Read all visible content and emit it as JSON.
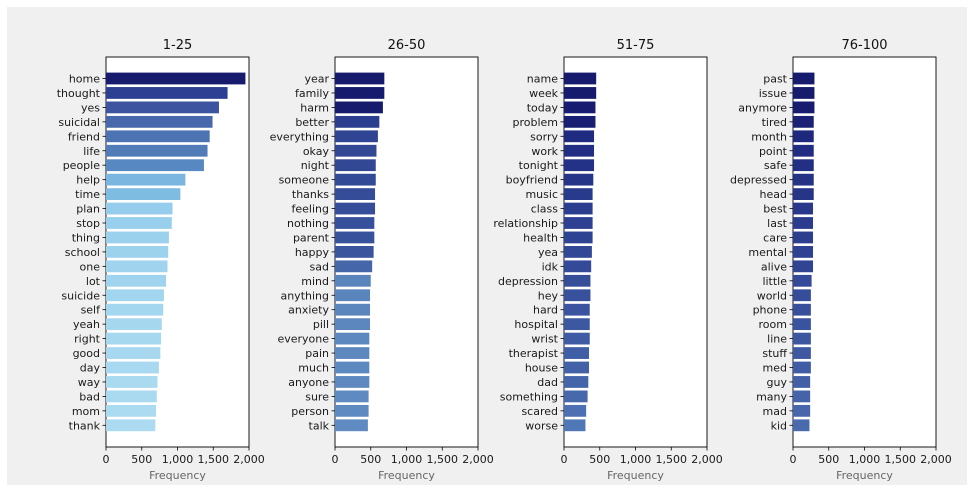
{
  "chart_data": [
    {
      "type": "bar",
      "orientation": "horizontal",
      "title": "1-25",
      "xlabel": "Frequency",
      "xlim": [
        0,
        2000
      ],
      "xticks": [
        "0",
        "500",
        "1,000",
        "1,500",
        "2,000"
      ],
      "categories": [
        "home",
        "thought",
        "yes",
        "suicidal",
        "friend",
        "life",
        "people",
        "help",
        "time",
        "plan",
        "stop",
        "thing",
        "school",
        "one",
        "lot",
        "suicide",
        "self",
        "yeah",
        "right",
        "good",
        "day",
        "way",
        "bad",
        "mom",
        "thank"
      ],
      "values": [
        1950,
        1700,
        1580,
        1490,
        1450,
        1420,
        1370,
        1110,
        1040,
        930,
        920,
        880,
        870,
        860,
        840,
        810,
        800,
        780,
        770,
        760,
        740,
        720,
        710,
        700,
        690
      ],
      "colors": [
        "#161b6e",
        "#2d3f93",
        "#3d55a0",
        "#4768aa",
        "#4d73b2",
        "#527cb8",
        "#5888c2",
        "#7ab6e0",
        "#7fbce2",
        "#96cdec",
        "#98cfec",
        "#9bd1ed",
        "#9dd2ed",
        "#9fd3ee",
        "#a0d4ee",
        "#a2d5ee",
        "#a3d6ef",
        "#a5d7ef",
        "#a6d8ef",
        "#a7d8f0",
        "#a8d9f0",
        "#a9daf0",
        "#aadaf0",
        "#abdbf1",
        "#acdbf1"
      ],
      "grid": false
    },
    {
      "type": "bar",
      "orientation": "horizontal",
      "title": "26-50",
      "xlabel": "Frequency",
      "xlim": [
        0,
        2000
      ],
      "xticks": [
        "0",
        "500",
        "1,000",
        "1,500",
        "2,000"
      ],
      "categories": [
        "year",
        "family",
        "harm",
        "better",
        "everything",
        "okay",
        "night",
        "someone",
        "thanks",
        "feeling",
        "nothing",
        "parent",
        "happy",
        "sad",
        "mind",
        "anything",
        "anxiety",
        "pill",
        "everyone",
        "pain",
        "much",
        "anyone",
        "sure",
        "person",
        "talk"
      ],
      "values": [
        690,
        690,
        670,
        620,
        600,
        580,
        570,
        570,
        560,
        560,
        550,
        550,
        540,
        520,
        500,
        490,
        490,
        490,
        480,
        480,
        480,
        480,
        470,
        470,
        460
      ],
      "colors": [
        "#161b6e",
        "#161b6e",
        "#161b6e",
        "#2b3d8f",
        "#2f4493",
        "#324895",
        "#324895",
        "#334a97",
        "#354c99",
        "#364e9a",
        "#37509b",
        "#38529c",
        "#3a549e",
        "#4566a8",
        "#5a84bc",
        "#5a84bc",
        "#5b85bd",
        "#5c86be",
        "#5d87bf",
        "#5d87bf",
        "#5e88c0",
        "#5e88c0",
        "#5f89c1",
        "#5f89c1",
        "#608ac2"
      ],
      "grid": false
    },
    {
      "type": "bar",
      "orientation": "horizontal",
      "title": "51-75",
      "xlabel": "Frequency",
      "xlim": [
        0,
        2000
      ],
      "xticks": [
        "0",
        "500",
        "1,000",
        "1,500",
        "2,000"
      ],
      "categories": [
        "name",
        "week",
        "today",
        "problem",
        "sorry",
        "work",
        "tonight",
        "boyfriend",
        "music",
        "class",
        "relationship",
        "health",
        "yea",
        "idk",
        "depression",
        "hey",
        "hard",
        "hospital",
        "wrist",
        "therapist",
        "house",
        "dad",
        "something",
        "scared",
        "worse"
      ],
      "values": [
        450,
        450,
        440,
        440,
        420,
        420,
        420,
        410,
        400,
        400,
        400,
        400,
        390,
        380,
        370,
        370,
        360,
        360,
        360,
        350,
        350,
        340,
        330,
        310,
        300
      ],
      "colors": [
        "#161b6e",
        "#161b6e",
        "#171c70",
        "#181e72",
        "#1f2b80",
        "#212e83",
        "#233186",
        "#263588",
        "#283a8c",
        "#2b3d8f",
        "#2d4091",
        "#2f4393",
        "#324795",
        "#344a98",
        "#364e9a",
        "#38519c",
        "#3a549f",
        "#3c58a1",
        "#3e5ba3",
        "#405ea5",
        "#4261a7",
        "#4565aa",
        "#4868ac",
        "#4c70b2",
        "#5077b6"
      ],
      "grid": false
    },
    {
      "type": "bar",
      "orientation": "horizontal",
      "title": "76-100",
      "xlabel": "Frequency",
      "xlim": [
        0,
        2000
      ],
      "xticks": [
        "0",
        "500",
        "1,000",
        "1,500",
        "2,000"
      ],
      "categories": [
        "past",
        "issue",
        "anymore",
        "tired",
        "month",
        "point",
        "safe",
        "depressed",
        "head",
        "best",
        "last",
        "care",
        "mental",
        "alive",
        "little",
        "world",
        "phone",
        "room",
        "line",
        "stuff",
        "med",
        "guy",
        "many",
        "mad",
        "kid"
      ],
      "values": [
        300,
        300,
        300,
        290,
        290,
        290,
        290,
        290,
        290,
        280,
        280,
        280,
        280,
        280,
        260,
        250,
        250,
        250,
        250,
        250,
        250,
        240,
        240,
        240,
        230
      ],
      "colors": [
        "#161b6e",
        "#161b6e",
        "#171c70",
        "#1b2276",
        "#1e287d",
        "#212d82",
        "#232f84",
        "#253286",
        "#273588",
        "#29388b",
        "#2b3b8d",
        "#2d3e8f",
        "#2f4192",
        "#314494",
        "#344a98",
        "#364d9a",
        "#38509c",
        "#3a539e",
        "#3c56a0",
        "#3e59a2",
        "#405ca4",
        "#4360a7",
        "#4563a9",
        "#4766ab",
        "#4a6aae"
      ],
      "grid": false
    }
  ]
}
